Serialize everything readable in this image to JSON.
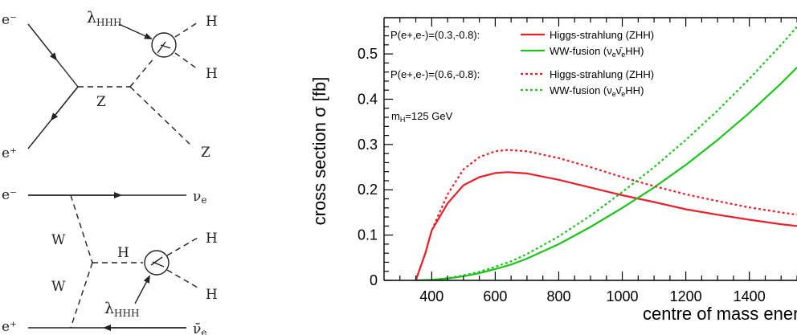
{
  "feynman": {
    "top": {
      "e_minus": "e⁻",
      "e_plus": "e⁺",
      "z_propagator": "Z",
      "h_out_1": "H",
      "h_out_2": "H",
      "z_out": "Z",
      "coupling_symbol": "λ",
      "coupling_sub": "HHH"
    },
    "bottom": {
      "e_minus": "e⁻",
      "nu_e": "ν",
      "nu_e_sub": "e",
      "w_upper": "W",
      "w_lower": "W",
      "h_propagator": "H",
      "h_out_1": "H",
      "h_out_2": "H",
      "coupling_symbol": "λ",
      "coupling_sub": "HHH",
      "e_plus": "e⁺",
      "nubar_e": "ν̄",
      "nubar_e_sub": "e"
    }
  },
  "chart_data": {
    "type": "line",
    "xlabel": "centre of mass energy [GeV]",
    "ylabel": "cross section σ [fb]",
    "xlim": [
      250,
      1550
    ],
    "ylim": [
      0,
      0.58
    ],
    "xticks": [
      400,
      600,
      800,
      1000,
      1200,
      1400
    ],
    "yticks": [
      0,
      0.1,
      0.2,
      0.3,
      0.4,
      0.5
    ],
    "xtick_labels": [
      "400",
      "600",
      "800",
      "1000",
      "1200",
      "1400"
    ],
    "ytick_labels": [
      "0",
      "0.1",
      "0.2",
      "0.3",
      "0.4",
      "0.5"
    ],
    "grid": false,
    "legend_position": "top-left",
    "annotation": {
      "prefix": "m",
      "sub": "H",
      "suffix": "=125 GeV"
    },
    "legend_groups": [
      {
        "label": "P(e+,e-)=(0.3,-0.8):",
        "entries": [
          {
            "series": 0,
            "text": "Higgs-strahlung (ZHH)"
          },
          {
            "series": 1,
            "text_parts": [
              "WW-fusion (ν",
              "e",
              "ν̄",
              "e",
              "HH)"
            ]
          }
        ]
      },
      {
        "label": "P(e+,e-)=(0.6,-0.8):",
        "entries": [
          {
            "series": 2,
            "text": "Higgs-strahlung (ZHH)"
          },
          {
            "series": 3,
            "text_parts": [
              "WW-fusion (ν",
              "e",
              "ν̄",
              "e",
              "HH)"
            ]
          }
        ]
      }
    ],
    "series": [
      {
        "style": "solid",
        "color": "#e8202a",
        "points": [
          [
            350,
            0
          ],
          [
            380,
            0.06
          ],
          [
            400,
            0.11
          ],
          [
            450,
            0.17
          ],
          [
            500,
            0.21
          ],
          [
            550,
            0.228
          ],
          [
            600,
            0.237
          ],
          [
            640,
            0.239
          ],
          [
            700,
            0.236
          ],
          [
            800,
            0.222
          ],
          [
            900,
            0.205
          ],
          [
            1000,
            0.188
          ],
          [
            1100,
            0.173
          ],
          [
            1200,
            0.157
          ],
          [
            1300,
            0.145
          ],
          [
            1400,
            0.134
          ],
          [
            1500,
            0.124
          ],
          [
            1550,
            0.12
          ]
        ]
      },
      {
        "style": "solid",
        "color": "#1ec21e",
        "points": [
          [
            350,
            0
          ],
          [
            400,
            0.001
          ],
          [
            450,
            0.004
          ],
          [
            500,
            0.009
          ],
          [
            550,
            0.016
          ],
          [
            600,
            0.025
          ],
          [
            650,
            0.035
          ],
          [
            700,
            0.048
          ],
          [
            800,
            0.08
          ],
          [
            900,
            0.118
          ],
          [
            1000,
            0.16
          ],
          [
            1100,
            0.205
          ],
          [
            1200,
            0.255
          ],
          [
            1300,
            0.31
          ],
          [
            1400,
            0.37
          ],
          [
            1500,
            0.435
          ],
          [
            1550,
            0.47
          ]
        ]
      },
      {
        "style": "dotted",
        "color": "#e8202a",
        "points": [
          [
            350,
            0
          ],
          [
            380,
            0.06
          ],
          [
            400,
            0.11
          ],
          [
            450,
            0.19
          ],
          [
            500,
            0.245
          ],
          [
            550,
            0.272
          ],
          [
            600,
            0.285
          ],
          [
            640,
            0.288
          ],
          [
            700,
            0.285
          ],
          [
            800,
            0.27
          ],
          [
            900,
            0.25
          ],
          [
            1000,
            0.228
          ],
          [
            1100,
            0.208
          ],
          [
            1200,
            0.19
          ],
          [
            1300,
            0.175
          ],
          [
            1400,
            0.161
          ],
          [
            1500,
            0.15
          ],
          [
            1550,
            0.145
          ]
        ]
      },
      {
        "style": "dotted",
        "color": "#1ec21e",
        "points": [
          [
            350,
            0
          ],
          [
            400,
            0.001
          ],
          [
            450,
            0.005
          ],
          [
            500,
            0.011
          ],
          [
            550,
            0.019
          ],
          [
            600,
            0.03
          ],
          [
            650,
            0.042
          ],
          [
            700,
            0.058
          ],
          [
            800,
            0.097
          ],
          [
            900,
            0.143
          ],
          [
            1000,
            0.195
          ],
          [
            1100,
            0.25
          ],
          [
            1200,
            0.31
          ],
          [
            1300,
            0.375
          ],
          [
            1400,
            0.445
          ],
          [
            1500,
            0.52
          ],
          [
            1550,
            0.56
          ]
        ]
      }
    ]
  }
}
